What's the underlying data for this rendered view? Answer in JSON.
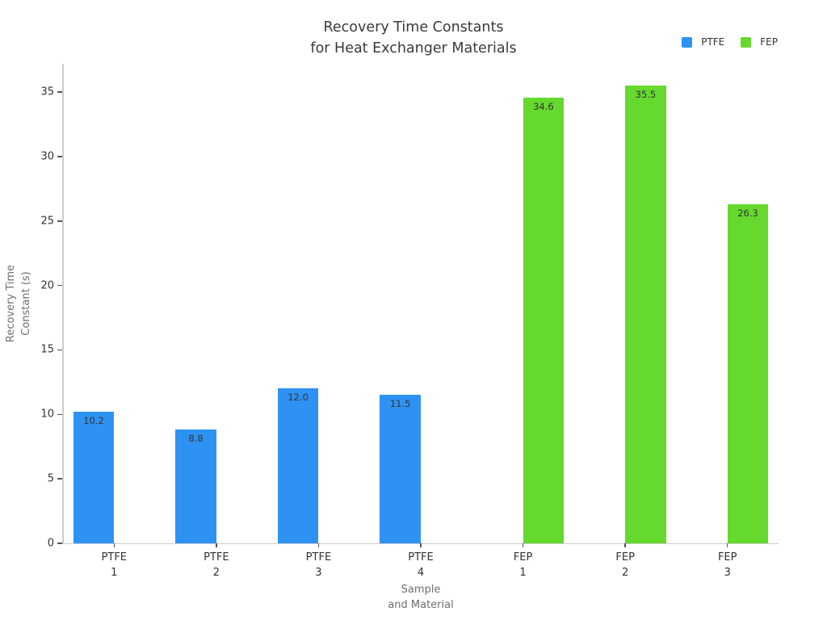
{
  "chart_data": {
    "type": "bar",
    "title": "Recovery Time Constants\nfor Heat Exchanger Materials",
    "xlabel": "Sample\nand Material",
    "ylabel": "Recovery Time\nConstant (s)",
    "categories": [
      "PTFE\n1",
      "PTFE\n2",
      "PTFE\n3",
      "PTFE\n4",
      "FEP\n1",
      "FEP\n2",
      "FEP\n3"
    ],
    "series": [
      {
        "name": "PTFE",
        "color": "#2E92F3",
        "values": [
          10.2,
          8.8,
          12.0,
          11.5,
          null,
          null,
          null
        ],
        "labels": [
          "10.2",
          "8.8",
          "12.0",
          "11.5",
          null,
          null,
          null
        ]
      },
      {
        "name": "FEP",
        "color": "#65D92D",
        "values": [
          null,
          null,
          null,
          null,
          34.6,
          35.5,
          26.3
        ],
        "labels": [
          null,
          null,
          null,
          null,
          "34.6",
          "35.5",
          "26.3"
        ]
      }
    ],
    "ylim": [
      0,
      37.2
    ],
    "yticks": [
      0,
      5,
      10,
      15,
      20,
      25,
      30,
      35
    ],
    "grid": false,
    "legend_position": "top-right",
    "bar_group_fraction": 0.8
  },
  "colors": {
    "background": "#ffffff",
    "axis_line": "#cccccc",
    "tick_mark": "#555555",
    "tick_text": "#333333",
    "muted_text": "#6e6e6e"
  }
}
